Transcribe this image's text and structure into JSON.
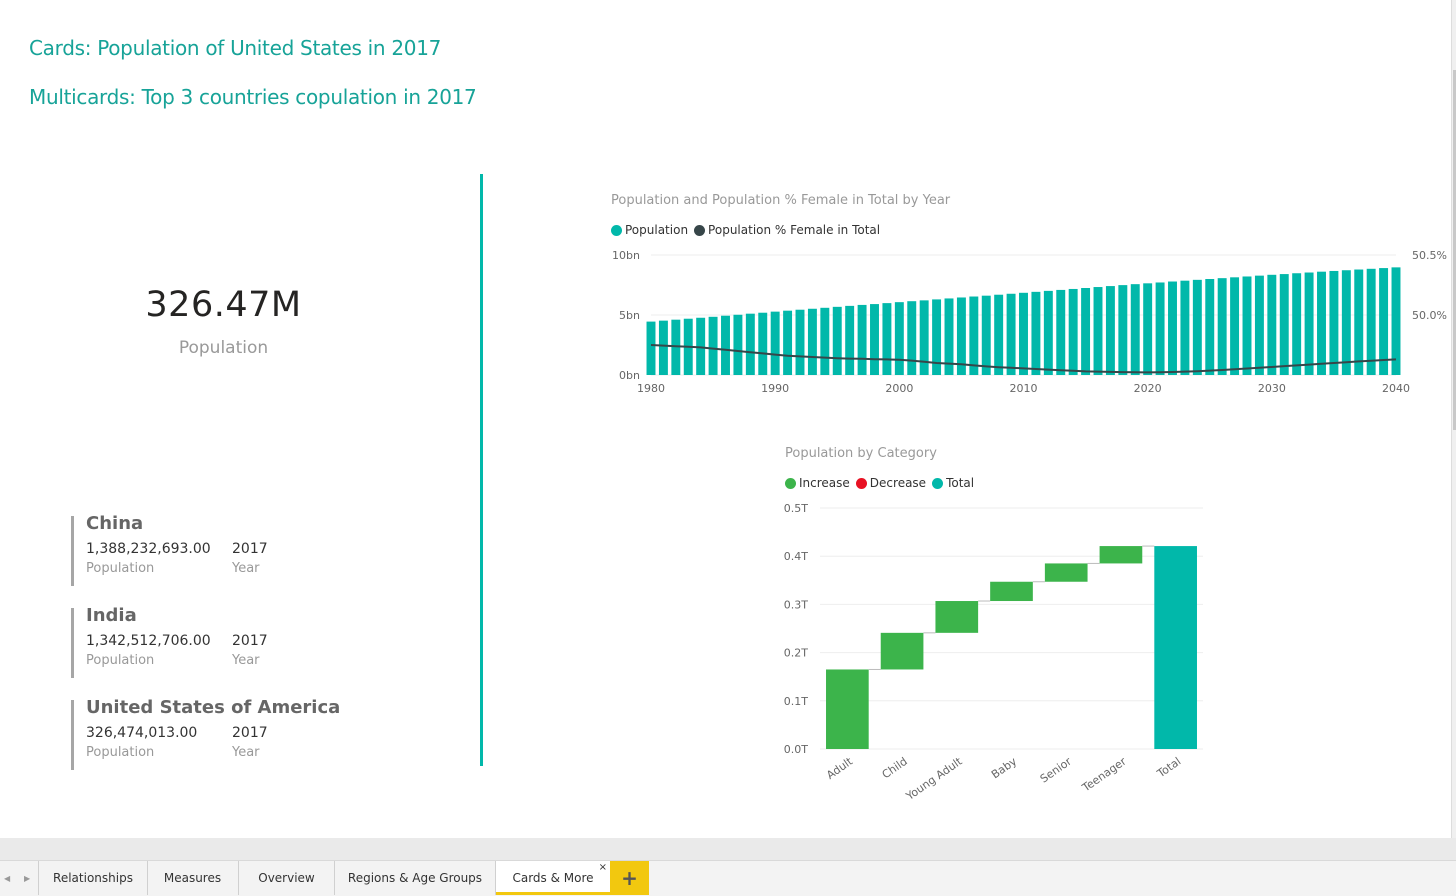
{
  "titles": {
    "cards": "Cards: Population of United States in 2017",
    "multicards": "Multicards: Top 3 countries copulation in 2017"
  },
  "card": {
    "value": "326.47M",
    "label": "Population"
  },
  "multicard": [
    {
      "name": "China",
      "population": "1,388,232,693.00",
      "population_label": "Population",
      "year": "2017",
      "year_label": "Year"
    },
    {
      "name": "India",
      "population": "1,342,512,706.00",
      "population_label": "Population",
      "year": "2017",
      "year_label": "Year"
    },
    {
      "name": "United States of America",
      "population": "326,474,013.00",
      "population_label": "Population",
      "year": "2017",
      "year_label": "Year"
    }
  ],
  "chart_data": [
    {
      "type": "bar",
      "title": "Population and Population % Female in Total by Year",
      "legend": [
        {
          "name": "Population",
          "color": "#01b8aa"
        },
        {
          "name": "Population % Female in Total",
          "color": "#374649"
        }
      ],
      "x_ticks": [
        "1980",
        "1990",
        "2000",
        "2010",
        "2020",
        "2030",
        "2040"
      ],
      "y_ticks_left": [
        "10bn",
        "5bn",
        "0bn"
      ],
      "y_ticks_right": [
        "50.5%",
        "50.0%"
      ],
      "ylim": [
        0,
        10
      ],
      "ylim_right": [
        49.5,
        50.5
      ],
      "x": [
        1980,
        1981,
        1982,
        1983,
        1984,
        1985,
        1986,
        1987,
        1988,
        1989,
        1990,
        1991,
        1992,
        1993,
        1994,
        1995,
        1996,
        1997,
        1998,
        1999,
        2000,
        2001,
        2002,
        2003,
        2004,
        2005,
        2006,
        2007,
        2008,
        2009,
        2010,
        2011,
        2012,
        2013,
        2014,
        2015,
        2016,
        2017,
        2018,
        2019,
        2020,
        2021,
        2022,
        2023,
        2024,
        2025,
        2026,
        2027,
        2028,
        2029,
        2030,
        2031,
        2032,
        2033,
        2034,
        2035,
        2036,
        2037,
        2038,
        2039,
        2040
      ],
      "series": [
        {
          "name": "Population",
          "type": "bar",
          "color": "#01b8aa",
          "values": [
            4.45,
            4.53,
            4.61,
            4.69,
            4.77,
            4.85,
            4.94,
            5.02,
            5.11,
            5.19,
            5.28,
            5.36,
            5.44,
            5.52,
            5.6,
            5.68,
            5.76,
            5.84,
            5.91,
            5.99,
            6.07,
            6.15,
            6.22,
            6.3,
            6.38,
            6.46,
            6.54,
            6.61,
            6.69,
            6.77,
            6.85,
            6.93,
            7.01,
            7.09,
            7.17,
            7.25,
            7.33,
            7.41,
            7.49,
            7.57,
            7.64,
            7.71,
            7.79,
            7.86,
            7.93,
            8.0,
            8.07,
            8.14,
            8.21,
            8.28,
            8.35,
            8.41,
            8.48,
            8.54,
            8.61,
            8.67,
            8.73,
            8.79,
            8.85,
            8.91,
            8.97
          ]
        },
        {
          "name": "Population % Female in Total",
          "type": "line",
          "color": "#374649",
          "values": [
            49.75,
            49.745,
            49.74,
            49.735,
            49.73,
            49.72,
            49.71,
            49.7,
            49.69,
            49.68,
            49.67,
            49.66,
            49.655,
            49.65,
            49.645,
            49.64,
            49.637,
            49.635,
            49.632,
            49.63,
            49.627,
            49.62,
            49.61,
            49.6,
            49.595,
            49.59,
            49.58,
            49.572,
            49.565,
            49.56,
            49.555,
            49.55,
            49.545,
            49.54,
            49.535,
            49.53,
            49.528,
            49.526,
            49.524,
            49.523,
            49.522,
            49.523,
            49.525,
            49.528,
            49.532,
            49.537,
            49.542,
            49.548,
            49.554,
            49.56,
            49.567,
            49.574,
            49.58,
            49.587,
            49.594,
            49.6,
            49.607,
            49.613,
            49.619,
            49.625,
            49.63
          ]
        }
      ]
    },
    {
      "type": "bar",
      "subtype": "waterfall",
      "title": "Population by Category",
      "legend": [
        {
          "name": "Increase",
          "color": "#3cb44b"
        },
        {
          "name": "Decrease",
          "color": "#e81123"
        },
        {
          "name": "Total",
          "color": "#01b8aa"
        }
      ],
      "categories": [
        "Adult",
        "Child",
        "Young Adult",
        "Baby",
        "Senior",
        "Teenager",
        "Total"
      ],
      "values": [
        0.165,
        0.076,
        0.066,
        0.04,
        0.038,
        0.036,
        0.421
      ],
      "kinds": [
        "Increase",
        "Increase",
        "Increase",
        "Increase",
        "Increase",
        "Increase",
        "Total"
      ],
      "y_ticks": [
        "0.5T",
        "0.4T",
        "0.3T",
        "0.2T",
        "0.1T",
        "0.0T"
      ],
      "ylim": [
        0,
        0.5
      ]
    }
  ],
  "tabs": [
    "Relationships",
    "Measures",
    "Overview",
    "Regions & Age Groups",
    "Cards & More"
  ],
  "active_tab": "Cards & More",
  "tab_close": "×",
  "add_tab": "+"
}
